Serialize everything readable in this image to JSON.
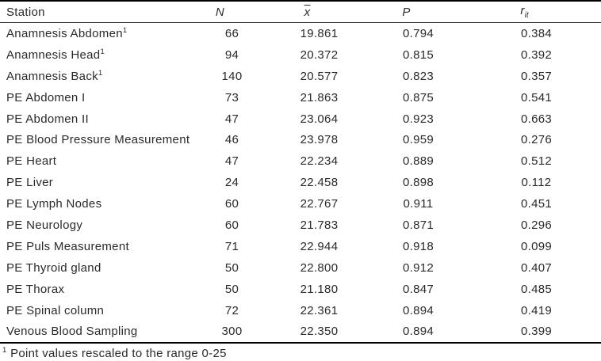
{
  "table": {
    "columns": [
      {
        "key": "station",
        "label": "Station",
        "italic": false,
        "overline": false,
        "sub": ""
      },
      {
        "key": "n",
        "label": "N",
        "italic": true,
        "overline": false,
        "sub": ""
      },
      {
        "key": "mean",
        "label": "x",
        "italic": true,
        "overline": true,
        "sub": ""
      },
      {
        "key": "p",
        "label": "P",
        "italic": true,
        "overline": false,
        "sub": ""
      },
      {
        "key": "rit",
        "label": "r",
        "italic": true,
        "overline": false,
        "sub": "it"
      }
    ],
    "rows": [
      {
        "station": "Anamnesis Abdomen",
        "marker": "1",
        "n": "66",
        "mean": "19.861",
        "p": "0.794",
        "rit": "0.384"
      },
      {
        "station": "Anamnesis Head",
        "marker": "1",
        "n": "94",
        "mean": "20.372",
        "p": "0.815",
        "rit": "0.392"
      },
      {
        "station": "Anamnesis Back",
        "marker": "1",
        "n": "140",
        "mean": "20.577",
        "p": "0.823",
        "rit": "0.357"
      },
      {
        "station": "PE Abdomen I",
        "marker": "",
        "n": "73",
        "mean": "21.863",
        "p": "0.875",
        "rit": "0.541"
      },
      {
        "station": "PE Abdomen II",
        "marker": "",
        "n": "47",
        "mean": "23.064",
        "p": "0.923",
        "rit": "0.663"
      },
      {
        "station": "PE Blood Pressure Measurement",
        "marker": "",
        "n": "46",
        "mean": "23.978",
        "p": "0.959",
        "rit": "0.276"
      },
      {
        "station": "PE Heart",
        "marker": "",
        "n": "47",
        "mean": "22.234",
        "p": "0.889",
        "rit": "0.512"
      },
      {
        "station": "PE Liver",
        "marker": "",
        "n": "24",
        "mean": "22.458",
        "p": "0.898",
        "rit": "0.112"
      },
      {
        "station": "PE Lymph Nodes",
        "marker": "",
        "n": "60",
        "mean": "22.767",
        "p": "0.911",
        "rit": "0.451"
      },
      {
        "station": "PE Neurology",
        "marker": "",
        "n": "60",
        "mean": "21.783",
        "p": "0.871",
        "rit": "0.296"
      },
      {
        "station": "PE Puls Measurement",
        "marker": "",
        "n": "71",
        "mean": "22.944",
        "p": "0.918",
        "rit": "0.099"
      },
      {
        "station": "PE Thyroid gland",
        "marker": "",
        "n": "50",
        "mean": "22.800",
        "p": "0.912",
        "rit": "0.407"
      },
      {
        "station": "PE Thorax",
        "marker": "",
        "n": "50",
        "mean": "21.180",
        "p": "0.847",
        "rit": "0.485"
      },
      {
        "station": "PE Spinal column",
        "marker": "",
        "n": "72",
        "mean": "22.361",
        "p": "0.894",
        "rit": "0.419"
      },
      {
        "station": "Venous Blood Sampling",
        "marker": "",
        "n": "300",
        "mean": "22.350",
        "p": "0.894",
        "rit": "0.399"
      }
    ],
    "footnote": {
      "marker": "1",
      "text": "Point values rescaled to the range 0-25"
    }
  },
  "colors": {
    "background": "#ffffff",
    "text": "#2a2a2a",
    "rule_heavy": "#000000",
    "rule_light": "#333333"
  }
}
